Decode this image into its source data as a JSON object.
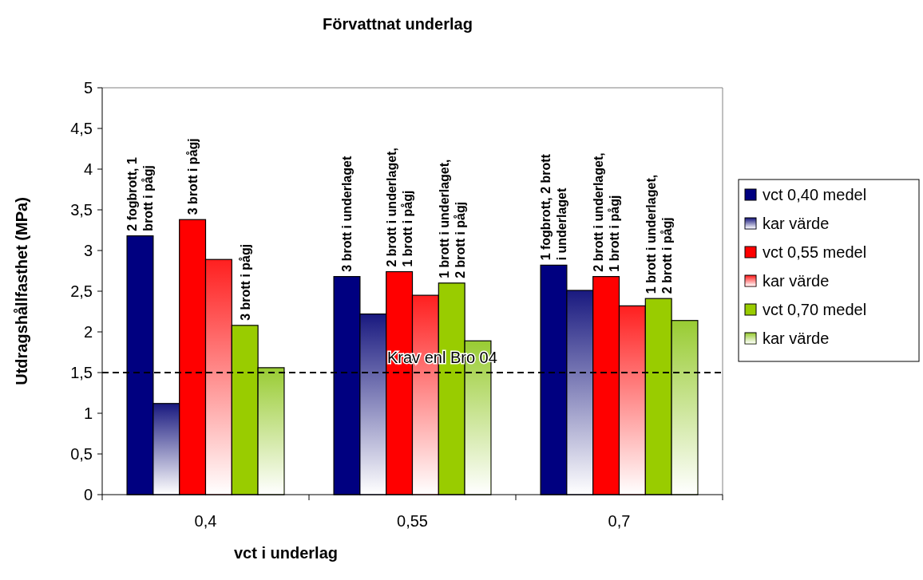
{
  "chart_data": {
    "type": "bar",
    "title": "Förvattnat underlag",
    "xlabel": "vct i underlag",
    "ylabel": "Utdragshållfasthet (MPa)",
    "categories": [
      "0,4",
      "0,55",
      "0,7"
    ],
    "series": [
      {
        "name": "vct 0,40 medel",
        "color": "#000080",
        "values": [
          3.18,
          2.68,
          2.82
        ]
      },
      {
        "name": "kar värde",
        "color": "#1a1a80",
        "values": [
          1.12,
          2.22,
          2.51
        ]
      },
      {
        "name": "vct 0,55 medel",
        "color": "#ff0000",
        "values": [
          3.38,
          2.74,
          2.68
        ]
      },
      {
        "name": "kar värde",
        "color": "#ff2020",
        "values": [
          2.89,
          2.45,
          2.32
        ]
      },
      {
        "name": "vct 0,70 medel",
        "color": "#99cc00",
        "values": [
          2.08,
          2.6,
          2.41
        ]
      },
      {
        "name": "kar värde",
        "color": "#99cc33",
        "values": [
          1.56,
          1.89,
          2.14
        ]
      }
    ],
    "ylim": [
      0,
      5
    ],
    "yticks": [
      0,
      {
        "value": 0.5,
        "label": "0,5"
      },
      1,
      {
        "value": 1.5,
        "label": "1,5"
      },
      2,
      {
        "value": 2.5,
        "label": "2,5"
      },
      3,
      {
        "value": 3.5,
        "label": "3,5"
      },
      4,
      {
        "value": 4.5,
        "label": "4,5"
      },
      5
    ],
    "grid": false,
    "legend": "right",
    "ref_lines": [
      {
        "axis": "y",
        "value": 1.5,
        "label": "Krav enl Bro 04",
        "color": "#000000",
        "line_style": "dashed"
      }
    ],
    "annotations": [
      "2 fogbrott, 1\nbrott i pågj",
      "3 brott i pågj",
      "3 brott i pågj",
      "3 brott i underlaget",
      "2 brott i underlaget,\n1 brott i pågj",
      "1 brott i underlaget,\n2 brott i pågj",
      "1 fogbrott, 2 brott\ni underlaget",
      "2 brott i underlaget,\n1 brott i pågj",
      "1 brott i underlaget,\n2 brott i pågj"
    ]
  }
}
